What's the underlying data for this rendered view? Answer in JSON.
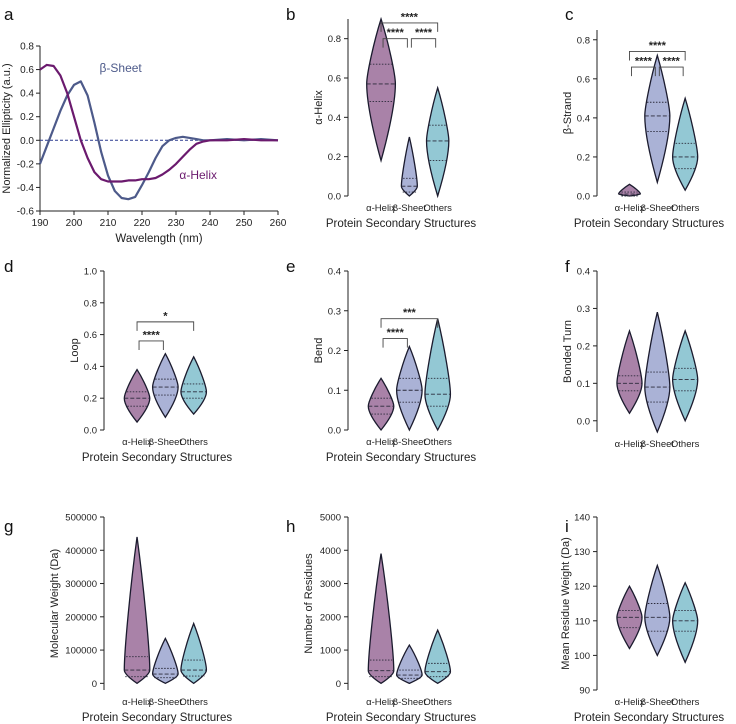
{
  "colors": {
    "helix": "#6b1a6e",
    "sheet": "#4d5a8a",
    "helix_fill": "#a982a8",
    "sheet_fill": "#aab2d6",
    "others_fill": "#93c8d4",
    "axis": "#222222",
    "baseline": "#2b3a8f"
  },
  "group_labels": [
    "α-Helix",
    "β-Sheet",
    "Others"
  ],
  "chart_data": [
    {
      "id": "a",
      "type": "line",
      "panel_letter": "a",
      "xlabel": "Wavelength (nm)",
      "ylabel": "Normalized Ellipticity (a.u.)",
      "xlim": [
        190,
        260
      ],
      "ylim": [
        -0.6,
        0.8
      ],
      "xticks": [
        "190",
        "200",
        "210",
        "220",
        "230",
        "240",
        "250",
        "260"
      ],
      "yticks": [
        "-0.6",
        "-0.4",
        "-0.2",
        "0.0",
        "0.2",
        "0.4",
        "0.6",
        "0.8"
      ],
      "series": [
        {
          "name": "β-Sheet",
          "color_key": "sheet",
          "x": [
            190,
            192,
            194,
            196,
            198,
            200,
            202,
            204,
            206,
            208,
            210,
            212,
            214,
            216,
            218,
            220,
            222,
            224,
            226,
            228,
            230,
            232,
            234,
            236,
            238,
            240,
            245,
            250,
            255,
            260
          ],
          "y": [
            -0.2,
            -0.05,
            0.1,
            0.25,
            0.38,
            0.47,
            0.5,
            0.38,
            0.15,
            -0.1,
            -0.3,
            -0.43,
            -0.49,
            -0.5,
            -0.48,
            -0.38,
            -0.27,
            -0.15,
            -0.05,
            0.0,
            0.02,
            0.03,
            0.02,
            0.01,
            0.0,
            0.0,
            0.01,
            0.0,
            0.01,
            0.0
          ]
        },
        {
          "name": "α-Helix",
          "color_key": "helix",
          "x": [
            190,
            192,
            194,
            196,
            198,
            200,
            202,
            204,
            206,
            208,
            210,
            212,
            214,
            216,
            218,
            220,
            222,
            224,
            226,
            228,
            230,
            232,
            234,
            236,
            238,
            240,
            245,
            250,
            255,
            260
          ],
          "y": [
            0.6,
            0.64,
            0.63,
            0.55,
            0.4,
            0.2,
            0.0,
            -0.15,
            -0.27,
            -0.33,
            -0.35,
            -0.35,
            -0.35,
            -0.34,
            -0.34,
            -0.33,
            -0.33,
            -0.32,
            -0.29,
            -0.25,
            -0.2,
            -0.14,
            -0.08,
            -0.03,
            -0.01,
            0.0,
            0.0,
            0.01,
            0.0,
            0.0
          ]
        }
      ],
      "annotations": [
        {
          "text": "β-Sheet",
          "x": 207.5,
          "y": 0.58,
          "color_key": "sheet"
        },
        {
          "text": "α-Helix",
          "x": 231,
          "y": -0.33,
          "color_key": "helix"
        }
      ]
    },
    {
      "id": "b",
      "type": "violin",
      "panel_letter": "b",
      "ylabel": "α-Helix",
      "xlabel": "Protein Secondary Structures",
      "ylim": [
        0,
        0.9
      ],
      "yticks": [
        "0.0",
        "0.2",
        "0.4",
        "0.6",
        "0.8"
      ],
      "groups": [
        {
          "label": "α-Helix",
          "min": 0.18,
          "max": 0.9,
          "median": 0.57,
          "q1": 0.48,
          "q3": 0.67,
          "width": 0.09
        },
        {
          "label": "β-Sheet",
          "min": 0.0,
          "max": 0.3,
          "median": 0.05,
          "q1": 0.02,
          "q3": 0.09,
          "width": 0.05
        },
        {
          "label": "Others",
          "min": 0.0,
          "max": 0.55,
          "median": 0.28,
          "q1": 0.18,
          "q3": 0.36,
          "width": 0.07
        }
      ],
      "significance": [
        {
          "from": 0,
          "to": 2,
          "y": 0.88,
          "label": "****"
        },
        {
          "from": 0,
          "to": 1,
          "y": 0.8,
          "label": "****"
        },
        {
          "from": 1,
          "to": 2,
          "y": 0.8,
          "label": "****"
        }
      ]
    },
    {
      "id": "c",
      "type": "violin",
      "panel_letter": "c",
      "ylabel": "β-Strand",
      "xlabel": "Protein Secondary Structures",
      "ylim": [
        0,
        0.85
      ],
      "yticks": [
        "0.0",
        "0.2",
        "0.4",
        "0.6",
        "0.8"
      ],
      "groups": [
        {
          "label": "α-Helix",
          "min": 0.0,
          "max": 0.06,
          "median": 0.01,
          "q1": 0.0,
          "q3": 0.02,
          "width": 0.07
        },
        {
          "label": "β-Sheet",
          "min": 0.07,
          "max": 0.72,
          "median": 0.41,
          "q1": 0.33,
          "q3": 0.48,
          "width": 0.08
        },
        {
          "label": "Others",
          "min": 0.03,
          "max": 0.5,
          "median": 0.2,
          "q1": 0.14,
          "q3": 0.27,
          "width": 0.08
        }
      ],
      "significance": [
        {
          "from": 0,
          "to": 2,
          "y": 0.74,
          "label": "****"
        },
        {
          "from": 0,
          "to": 1,
          "y": 0.66,
          "label": "****"
        },
        {
          "from": 1,
          "to": 2,
          "y": 0.66,
          "label": "****"
        }
      ]
    },
    {
      "id": "d",
      "type": "violin",
      "panel_letter": "d",
      "ylabel": "Loop",
      "xlabel": "Protein Secondary Structures",
      "ylim": [
        0,
        1.0
      ],
      "yticks": [
        "0.0",
        "0.2",
        "0.4",
        "0.6",
        "0.8",
        "1.0"
      ],
      "groups": [
        {
          "label": "α-Helix",
          "min": 0.05,
          "max": 0.38,
          "median": 0.2,
          "q1": 0.15,
          "q3": 0.24,
          "width": 0.08
        },
        {
          "label": "β-Sheet",
          "min": 0.08,
          "max": 0.48,
          "median": 0.27,
          "q1": 0.22,
          "q3": 0.32,
          "width": 0.08
        },
        {
          "label": "Others",
          "min": 0.1,
          "max": 0.46,
          "median": 0.24,
          "q1": 0.2,
          "q3": 0.29,
          "width": 0.08
        }
      ],
      "significance": [
        {
          "from": 0,
          "to": 2,
          "y": 0.68,
          "label": "*"
        },
        {
          "from": 0,
          "to": 1,
          "y": 0.56,
          "label": "****"
        }
      ]
    },
    {
      "id": "e",
      "type": "violin",
      "panel_letter": "e",
      "ylabel": "Bend",
      "xlabel": "Protein Secondary Structures",
      "ylim": [
        0,
        0.4
      ],
      "yticks": [
        "0.0",
        "0.1",
        "0.2",
        "0.3",
        "0.4"
      ],
      "groups": [
        {
          "label": "α-Helix",
          "min": 0.0,
          "max": 0.13,
          "median": 0.06,
          "q1": 0.04,
          "q3": 0.08,
          "width": 0.08
        },
        {
          "label": "β-Sheet",
          "min": 0.0,
          "max": 0.21,
          "median": 0.1,
          "q1": 0.07,
          "q3": 0.13,
          "width": 0.08
        },
        {
          "label": "Others",
          "min": 0.0,
          "max": 0.28,
          "median": 0.09,
          "q1": 0.06,
          "q3": 0.13,
          "width": 0.08
        }
      ],
      "significance": [
        {
          "from": 0,
          "to": 2,
          "y": 0.28,
          "label": "***"
        },
        {
          "from": 0,
          "to": 1,
          "y": 0.23,
          "label": "****"
        }
      ]
    },
    {
      "id": "f",
      "type": "violin",
      "panel_letter": "f",
      "ylabel": "Bonded Turn",
      "xlabel": "",
      "ylim": [
        -0.03,
        0.4
      ],
      "yticks": [
        "0.0",
        "0.1",
        "0.2",
        "0.3",
        "0.4"
      ],
      "groups": [
        {
          "label": "α-Helix",
          "min": 0.02,
          "max": 0.24,
          "median": 0.1,
          "q1": 0.08,
          "q3": 0.12,
          "width": 0.08
        },
        {
          "label": "β-Sheet",
          "min": -0.03,
          "max": 0.29,
          "median": 0.09,
          "q1": 0.05,
          "q3": 0.13,
          "width": 0.08
        },
        {
          "label": "Others",
          "min": 0.0,
          "max": 0.24,
          "median": 0.11,
          "q1": 0.08,
          "q3": 0.14,
          "width": 0.08
        }
      ],
      "significance": []
    },
    {
      "id": "g",
      "type": "violin",
      "panel_letter": "g",
      "ylabel": "Molecular Weight (Da)",
      "xlabel": "Protein Secondary Structures",
      "ylim": [
        -20000,
        500000
      ],
      "yticks": [
        "0",
        "100000",
        "200000",
        "300000",
        "400000",
        "500000"
      ],
      "groups": [
        {
          "label": "α-Helix",
          "min": 0,
          "max": 440000,
          "median": 40000,
          "q1": 20000,
          "q3": 80000,
          "width": 0.08
        },
        {
          "label": "β-Sheet",
          "min": 0,
          "max": 135000,
          "median": 28000,
          "q1": 17000,
          "q3": 45000,
          "width": 0.08
        },
        {
          "label": "Others",
          "min": 0,
          "max": 180000,
          "median": 40000,
          "q1": 22000,
          "q3": 70000,
          "width": 0.08
        }
      ],
      "significance": []
    },
    {
      "id": "h",
      "type": "violin",
      "panel_letter": "h",
      "ylabel": "Number of Residues",
      "xlabel": "Protein Secondary Structures",
      "ylim": [
        -200,
        5000
      ],
      "yticks": [
        "0",
        "1000",
        "2000",
        "3000",
        "4000",
        "5000"
      ],
      "groups": [
        {
          "label": "α-Helix",
          "min": 0,
          "max": 3900,
          "median": 380,
          "q1": 200,
          "q3": 700,
          "width": 0.08
        },
        {
          "label": "β-Sheet",
          "min": 0,
          "max": 1150,
          "median": 250,
          "q1": 150,
          "q3": 400,
          "width": 0.08
        },
        {
          "label": "Others",
          "min": 0,
          "max": 1600,
          "median": 350,
          "q1": 200,
          "q3": 600,
          "width": 0.08
        }
      ],
      "significance": []
    },
    {
      "id": "i",
      "type": "violin",
      "panel_letter": "i",
      "ylabel": "Mean Residue Weight (Da)",
      "xlabel": "Protein Secondary Structures",
      "ylim": [
        90,
        140
      ],
      "yticks": [
        "90",
        "100",
        "110",
        "120",
        "130",
        "140"
      ],
      "groups": [
        {
          "label": "α-Helix",
          "min": 102,
          "max": 120,
          "median": 111,
          "q1": 108,
          "q3": 113,
          "width": 0.08
        },
        {
          "label": "β-Sheet",
          "min": 100,
          "max": 126,
          "median": 111,
          "q1": 107,
          "q3": 115,
          "width": 0.08
        },
        {
          "label": "Others",
          "min": 98,
          "max": 121,
          "median": 110,
          "q1": 107,
          "q3": 113,
          "width": 0.08
        }
      ],
      "significance": []
    }
  ]
}
